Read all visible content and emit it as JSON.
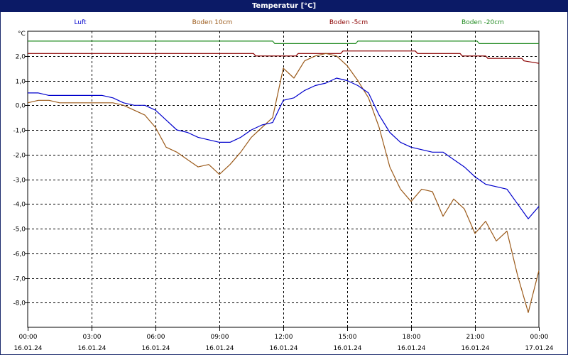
{
  "chart_data": {
    "type": "line",
    "title": "Temperatur [°C]",
    "ylabel": "°C",
    "ylim": [
      -9.0,
      3.0
    ],
    "grid": true,
    "legend_position": "top",
    "yticks": [
      2.0,
      1.0,
      0.0,
      -1.0,
      -2.0,
      -3.0,
      -4.0,
      -5.0,
      -6.0,
      -7.0,
      -8.0
    ],
    "ytick_labels": [
      "2,0",
      "1,0",
      "0,0",
      "-1,0",
      "-2,0",
      "-3,0",
      "-4,0",
      "-5,0",
      "-6,0",
      "-7,0",
      "-8,0"
    ],
    "xticks": [
      {
        "time": "00:00",
        "date": "16.01.24"
      },
      {
        "time": "03:00",
        "date": "16.01.24"
      },
      {
        "time": "06:00",
        "date": "16.01.24"
      },
      {
        "time": "09:00",
        "date": "16.01.24"
      },
      {
        "time": "12:00",
        "date": "16.01.24"
      },
      {
        "time": "15:00",
        "date": "16.01.24"
      },
      {
        "time": "18:00",
        "date": "16.01.24"
      },
      {
        "time": "21:00",
        "date": "16.01.24"
      },
      {
        "time": "00:00",
        "date": "17.01.24"
      }
    ],
    "series": [
      {
        "name": "Luft",
        "color": "#0000cc",
        "x": [
          0,
          0.5,
          1,
          1.5,
          2,
          2.5,
          3,
          3.5,
          4,
          4.5,
          5,
          5.5,
          6,
          6.5,
          7,
          7.5,
          8,
          8.5,
          9,
          9.5,
          10,
          10.5,
          11,
          11.5,
          12,
          12.5,
          13,
          13.5,
          14,
          14.5,
          15,
          15.5,
          16,
          16.5,
          17,
          17.5,
          18,
          18.5,
          19,
          19.5,
          20,
          20.5,
          21,
          21.5,
          22,
          22.5,
          23,
          23.5,
          24
        ],
        "values": [
          0.5,
          0.5,
          0.4,
          0.4,
          0.4,
          0.4,
          0.4,
          0.4,
          0.3,
          0.1,
          0.0,
          0.0,
          -0.2,
          -0.6,
          -1.0,
          -1.1,
          -1.3,
          -1.4,
          -1.5,
          -1.5,
          -1.3,
          -1.0,
          -0.8,
          -0.7,
          0.2,
          0.3,
          0.6,
          0.8,
          0.9,
          1.1,
          1.0,
          0.8,
          0.5,
          -0.4,
          -1.1,
          -1.5,
          -1.7,
          -1.8,
          -1.9,
          -1.9,
          -2.2,
          -2.5,
          -2.9,
          -3.2,
          -3.3,
          -3.4,
          -4.0,
          -4.6,
          -4.1
        ]
      },
      {
        "name": "Boden 10cm",
        "color": "#9b5a1a",
        "x": [
          0,
          0.5,
          1,
          1.5,
          2,
          2.5,
          3,
          3.5,
          4,
          4.5,
          5,
          5.5,
          6,
          6.5,
          7,
          7.5,
          8,
          8.5,
          9,
          9.5,
          10,
          10.5,
          11,
          11.5,
          12,
          12.5,
          13,
          13.5,
          14,
          14.5,
          15,
          15.5,
          16,
          16.5,
          17,
          17.5,
          18,
          18.5,
          19,
          19.5,
          20,
          20.5,
          21,
          21.5,
          22,
          22.5,
          23,
          23.5,
          24
        ],
        "values": [
          0.1,
          0.2,
          0.2,
          0.1,
          0.1,
          0.1,
          0.1,
          0.1,
          0.1,
          0.0,
          -0.2,
          -0.4,
          -0.9,
          -1.7,
          -1.9,
          -2.2,
          -2.5,
          -2.4,
          -2.8,
          -2.4,
          -1.9,
          -1.3,
          -0.9,
          -0.5,
          1.5,
          1.1,
          1.8,
          2.0,
          2.1,
          2.0,
          1.6,
          1.0,
          0.3,
          -0.9,
          -2.5,
          -3.4,
          -3.9,
          -3.4,
          -3.5,
          -4.5,
          -3.8,
          -4.2,
          -5.2,
          -4.7,
          -5.5,
          -5.1,
          -6.9,
          -8.4,
          -6.7
        ]
      },
      {
        "name": "Boden -5cm",
        "color": "#8b0000",
        "x": [
          0,
          1,
          2,
          3,
          4,
          5,
          6,
          7,
          8,
          9,
          10,
          10.6,
          10.7,
          11,
          12,
          12.6,
          12.7,
          13,
          14,
          14.7,
          14.8,
          15,
          16,
          17,
          18,
          18.2,
          18.3,
          19,
          20,
          20.3,
          20.4,
          21,
          21.5,
          21.6,
          22,
          23,
          23.2,
          23.3,
          24
        ],
        "values": [
          2.1,
          2.1,
          2.1,
          2.1,
          2.1,
          2.1,
          2.1,
          2.1,
          2.1,
          2.1,
          2.1,
          2.1,
          2.0,
          2.0,
          2.0,
          2.0,
          2.1,
          2.1,
          2.1,
          2.1,
          2.2,
          2.2,
          2.2,
          2.2,
          2.2,
          2.2,
          2.1,
          2.1,
          2.1,
          2.1,
          2.0,
          2.0,
          2.0,
          1.9,
          1.9,
          1.9,
          1.9,
          1.8,
          1.7
        ]
      },
      {
        "name": "Boden -20cm",
        "color": "#228b22",
        "x": [
          0,
          2,
          4,
          6,
          8,
          10,
          11.5,
          11.6,
          12,
          13,
          14,
          15.4,
          15.5,
          16,
          18,
          20,
          21.1,
          21.2,
          22,
          23,
          24
        ],
        "values": [
          2.6,
          2.6,
          2.6,
          2.6,
          2.6,
          2.6,
          2.6,
          2.5,
          2.5,
          2.5,
          2.5,
          2.5,
          2.6,
          2.6,
          2.6,
          2.6,
          2.6,
          2.5,
          2.5,
          2.5,
          2.5
        ]
      }
    ]
  }
}
